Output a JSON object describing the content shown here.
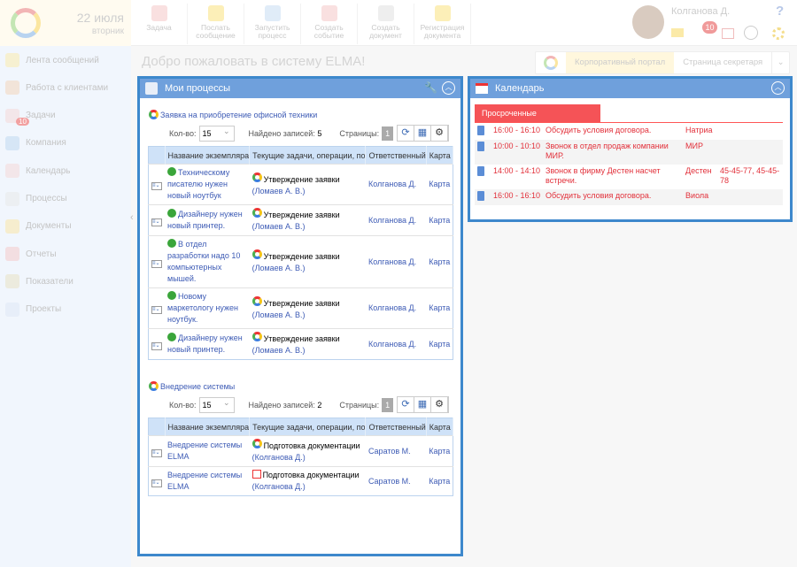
{
  "header": {
    "date": "22 июля",
    "weekday": "вторник",
    "user_name": "Колганова Д.",
    "tasks_badge": "10",
    "help": "?",
    "toolbar": [
      {
        "label": "Задача",
        "icon": "task-icon"
      },
      {
        "label": "Послать сообщение",
        "icon": "mail-icon"
      },
      {
        "label": "Запустить процесс",
        "icon": "process-icon"
      },
      {
        "label": "Создать событие",
        "icon": "calendar-icon"
      },
      {
        "label": "Создать документ",
        "icon": "document-icon"
      },
      {
        "label": "Регистрация документа",
        "icon": "register-icon"
      }
    ]
  },
  "sidebar": {
    "items": [
      {
        "label": "Лента сообщений"
      },
      {
        "label": "Работа с клиентами"
      },
      {
        "label": "Задачи",
        "badge": "10"
      },
      {
        "label": "Компания"
      },
      {
        "label": "Календарь"
      },
      {
        "label": "Процессы"
      },
      {
        "label": "Документы"
      },
      {
        "label": "Отчеты"
      },
      {
        "label": "Показатели"
      },
      {
        "label": "Проекты"
      }
    ]
  },
  "page": {
    "title": "Добро пожаловать в систему ELMA!",
    "tabs": [
      "Корпоративный портал",
      "Страница секретаря"
    ]
  },
  "processes": {
    "title": "Мои процессы",
    "columns": [
      "Название экземпляра",
      "Текущие задачи, операции, по",
      "Ответственный",
      "Карта"
    ],
    "count_label": "Кол-во:",
    "found_label": "Найдено записей:",
    "pages_label": "Страницы:",
    "groups": [
      {
        "name": "Заявка на приобретение офисной техники",
        "count": "15",
        "found": "5",
        "page": "1",
        "rows": [
          {
            "name": "Техническому писателю нужен новый ноутбук",
            "task": "Утверждение заявки",
            "task_user": "(Ломаев А. В.)",
            "responsible": "Колганова Д.",
            "map": "Карта"
          },
          {
            "name": "Дизайнеру нужен новый принтер.",
            "task": "Утверждение заявки",
            "task_user": "(Ломаев А. В.)",
            "responsible": "Колганова Д.",
            "map": "Карта"
          },
          {
            "name": "В отдел разработки надо 10 компьютерных мышей.",
            "task": "Утверждение заявки",
            "task_user": "(Ломаев А. В.)",
            "responsible": "Колганова Д.",
            "map": "Карта"
          },
          {
            "name": "Новому маркетологу нужен ноутбук.",
            "task": "Утверждение заявки",
            "task_user": "(Ломаев А. В.)",
            "responsible": "Колганова Д.",
            "map": "Карта"
          },
          {
            "name": "Дизайнеру нужен новый принтер.",
            "task": "Утверждение заявки",
            "task_user": "(Ломаев А. В.)",
            "responsible": "Колганова Д.",
            "map": "Карта"
          }
        ]
      },
      {
        "name": "Внедрение системы",
        "count": "15",
        "found": "2",
        "page": "1",
        "rows": [
          {
            "name": "Внедрение системы ELMA",
            "task": "Подготовка документации",
            "task_user": "(Колганова Д.)",
            "responsible": "Саратов М.",
            "map": "Карта"
          },
          {
            "name": "Внедрение системы ELMA",
            "task": "Подготовка документации",
            "task_user": "(Колганова Д.)",
            "responsible": "Саратов М.",
            "map": "Карта"
          }
        ]
      }
    ]
  },
  "calendar": {
    "title": "Календарь",
    "tab": "Просроченные",
    "events": [
      {
        "time": "16:00 - 16:10",
        "subject": "Обсудить условия договора.",
        "company": "Натриа",
        "phone": ""
      },
      {
        "time": "10:00 - 10:10",
        "subject": "Звонок в отдел продаж компании МИР.",
        "company": "МИР",
        "phone": ""
      },
      {
        "time": "14:00 - 14:10",
        "subject": "Звонок в фирму Дестен насчет встречи.",
        "company": "Дестен",
        "phone": "45-45-77, 45-45-78"
      },
      {
        "time": "16:00 - 16:10",
        "subject": "Обсудить условия договора.",
        "company": "Виола",
        "phone": ""
      }
    ]
  }
}
